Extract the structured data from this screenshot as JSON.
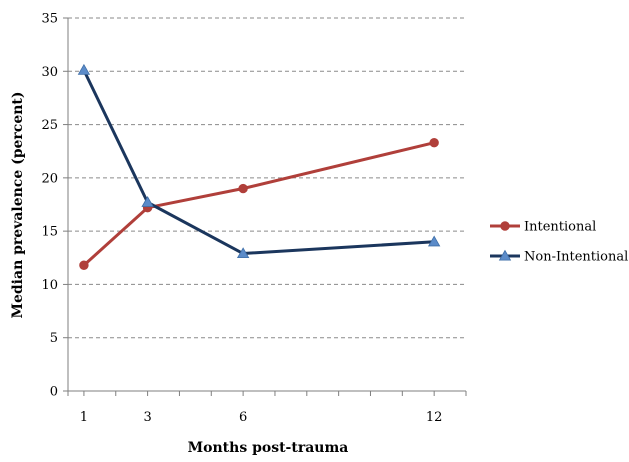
{
  "chart_data": {
    "type": "line",
    "title": "",
    "xlabel": "Months post-trauma",
    "ylabel": "Median prevalence (percent)",
    "x": [
      1,
      3,
      6,
      12
    ],
    "xlim": [
      0.5,
      13
    ],
    "ylim": [
      0,
      35
    ],
    "yticks": [
      0,
      5,
      10,
      15,
      20,
      25,
      30,
      35
    ],
    "xtick_labels": [
      "1",
      "3",
      "6",
      "12"
    ],
    "grid": "horizontal dashed",
    "legend_position": "right",
    "series": [
      {
        "name": "Intentional",
        "values": [
          11.8,
          17.2,
          19.0,
          23.3
        ],
        "color": "#b03f3a",
        "marker": "circle"
      },
      {
        "name": "Non-Intentional",
        "values": [
          30.1,
          17.7,
          12.9,
          14.0
        ],
        "color": "#1b365d",
        "marker": "triangle",
        "marker_color": "#5b8bc9"
      }
    ]
  }
}
